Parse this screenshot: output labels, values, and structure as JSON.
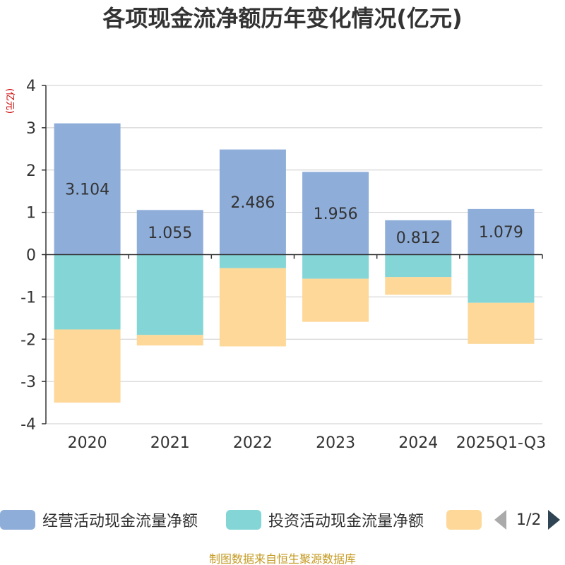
{
  "title": "各项现金流净额历年变化情况(亿元)",
  "unit_label": "(亿元)",
  "source_note": "制图数据来自恒生聚源数据库",
  "legend": {
    "pager": "1/2"
  },
  "colors": {
    "operating": "#8eadd9",
    "investing": "#84d5d6",
    "financing": "#fdd898",
    "grid": "#cccccc",
    "axis": "#333333",
    "text": "#333333",
    "unit": "#cc0000"
  },
  "chart_data": {
    "type": "bar",
    "stacked": true,
    "title": "各项现金流净额历年变化情况(亿元)",
    "ylabel": "(亿元)",
    "ylim": [
      -4,
      4
    ],
    "yticks": [
      4,
      3,
      2,
      1,
      0,
      -1,
      -2,
      -3,
      -4
    ],
    "categories": [
      "2020",
      "2021",
      "2022",
      "2023",
      "2024",
      "2025Q1-Q3"
    ],
    "series": [
      {
        "name": "经营活动现金流量净额",
        "color": "#8eadd9",
        "values": [
          3.104,
          1.055,
          2.486,
          1.956,
          0.812,
          1.079
        ],
        "show_labels": true
      },
      {
        "name": "投资活动现金流量净额",
        "color": "#84d5d6",
        "values": [
          -1.77,
          -1.9,
          -0.32,
          -0.57,
          -0.53,
          -1.14
        ],
        "show_labels": false
      },
      {
        "name": "",
        "color": "#fdd898",
        "values": [
          -1.73,
          -0.25,
          -1.85,
          -1.02,
          -0.42,
          -0.97
        ],
        "show_labels": false
      }
    ]
  }
}
